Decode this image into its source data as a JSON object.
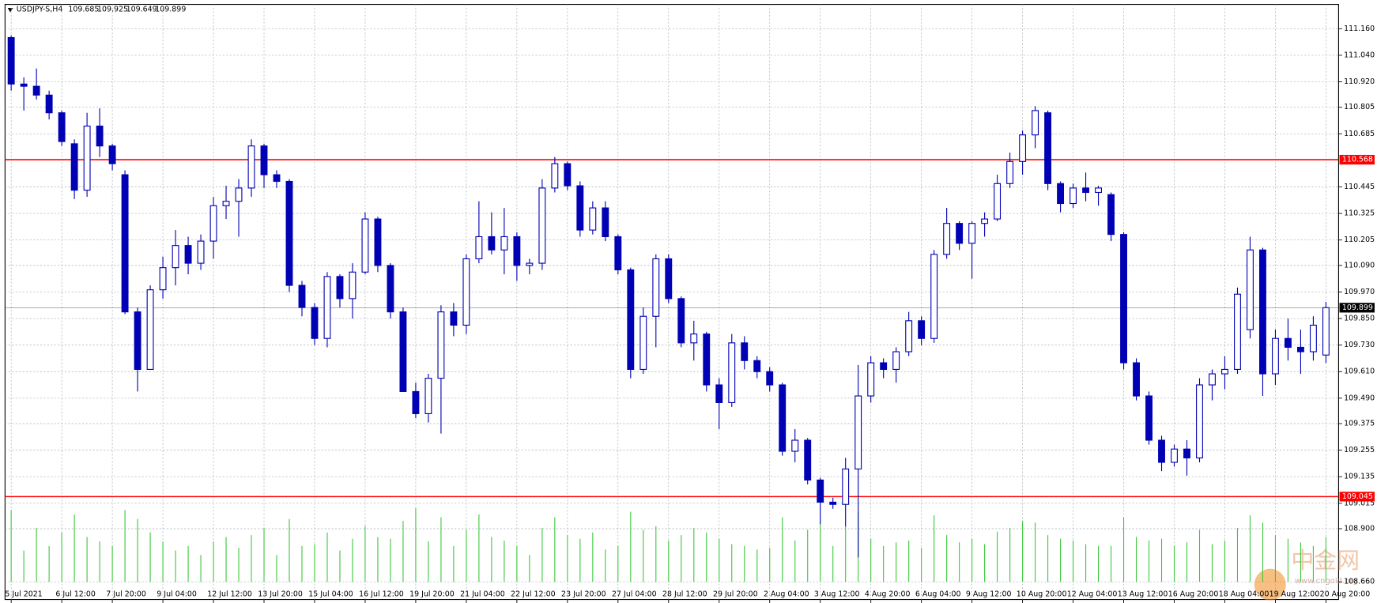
{
  "chart_data": {
    "type": "candlestick",
    "title": "USDJPY-S,H4",
    "color": "#0000b4",
    "volume_color": "#3cc83c",
    "grid": true,
    "watermark": "中金网",
    "watermark_sub": "www.cngold.org",
    "ylim": [
      108.58,
      111.27
    ],
    "yticks": [
      {
        "value": 111.16,
        "label": "111.160"
      },
      {
        "value": 111.04,
        "label": "111.040"
      },
      {
        "value": 110.92,
        "label": "110.920"
      },
      110.805,
      110.685,
      110.445,
      110.325,
      110.205,
      {
        "value": 110.09,
        "label": "110.090"
      },
      {
        "value": 109.97,
        "label": "109.970"
      },
      {
        "value": 109.85,
        "label": "109.850"
      },
      {
        "value": 109.73,
        "label": "109.730"
      },
      {
        "value": 109.61,
        "label": "109.610"
      },
      {
        "value": 109.49,
        "label": "109.490"
      },
      109.375,
      109.255,
      109.135,
      109.015,
      {
        "value": 108.9,
        "label": "108.900"
      },
      {
        "value": 108.66,
        "label": "108.660"
      }
    ],
    "hlines": [
      {
        "value": 110.568,
        "color": "#ff0000"
      },
      {
        "value": 109.045,
        "color": "#ff0000"
      },
      {
        "value": 109.899,
        "color": "#000000"
      }
    ],
    "categories": [
      "5 Jul 2021",
      null,
      null,
      null,
      "6 Jul 12:00",
      null,
      null,
      null,
      "7 Jul 20:00",
      null,
      null,
      null,
      "9 Jul 04:00",
      null,
      null,
      null,
      "12 Jul 12:00",
      null,
      null,
      null,
      "13 Jul 20:00",
      null,
      null,
      null,
      "15 Jul 04:00",
      null,
      null,
      null,
      "16 Jul 12:00",
      null,
      null,
      null,
      "19 Jul 20:00",
      null,
      null,
      null,
      "21 Jul 04:00",
      null,
      null,
      null,
      "22 Jul 12:00",
      null,
      null,
      null,
      "23 Jul 20:00",
      null,
      null,
      null,
      "27 Jul 04:00",
      null,
      null,
      null,
      "28 Jul 12:00",
      null,
      null,
      null,
      "29 Jul 20:00",
      null,
      null,
      null,
      "2 Aug 04:00",
      null,
      null,
      null,
      "3 Aug 12:00",
      null,
      null,
      null,
      "4 Aug 20:00",
      null,
      null,
      null,
      "6 Aug 04:00",
      null,
      null,
      null,
      "9 Aug 12:00",
      null,
      null,
      null,
      "10 Aug 20:00",
      null,
      null,
      null,
      "12 Aug 04:00",
      null,
      null,
      null,
      "13 Aug 12:00",
      null,
      null,
      null,
      "16 Aug 20:00",
      null,
      null,
      null,
      "18 Aug 04:00",
      null,
      null,
      null,
      "19 Aug 12:00",
      null,
      null,
      null,
      "20 Aug 20:00"
    ],
    "open": [
      111.12,
      110.91,
      110.9,
      110.86,
      110.78,
      110.64,
      110.43,
      110.72,
      110.63,
      110.5,
      109.88,
      109.62,
      109.98,
      110.08,
      110.18,
      110.1,
      110.2,
      110.36,
      110.38,
      110.44,
      110.63,
      110.5,
      110.47,
      110.0,
      109.9,
      109.76,
      110.04,
      109.94,
      110.06,
      110.3,
      110.09,
      109.88,
      109.52,
      109.42,
      109.58,
      109.88,
      109.82,
      110.12,
      110.22,
      110.16,
      110.22,
      110.09,
      110.1,
      110.44,
      110.55,
      110.45,
      110.25,
      110.35,
      110.22,
      110.07,
      109.62,
      109.86,
      110.12,
      109.94,
      109.74,
      109.78,
      109.55,
      109.47,
      109.74,
      109.66,
      109.61,
      109.55,
      109.25,
      109.3,
      109.12,
      109.02,
      109.01,
      109.17,
      109.5,
      109.65,
      109.62,
      109.7,
      109.84,
      109.76,
      110.14,
      110.28,
      110.19,
      110.28,
      110.3,
      110.46,
      110.56,
      110.68,
      110.78,
      110.46,
      110.37,
      110.44,
      110.42,
      110.41,
      110.23,
      109.65,
      109.5,
      109.3,
      109.2,
      109.26,
      109.22,
      109.55,
      109.6,
      109.62,
      109.8,
      110.16,
      109.6,
      109.76,
      109.72,
      109.7,
      109.685
    ],
    "high": [
      111.13,
      110.94,
      110.98,
      110.88,
      110.79,
      110.66,
      110.78,
      110.8,
      110.64,
      110.52,
      109.9,
      110.0,
      110.13,
      110.25,
      110.22,
      110.23,
      110.4,
      110.45,
      110.48,
      110.66,
      110.64,
      110.52,
      110.48,
      110.02,
      109.92,
      110.06,
      110.05,
      110.1,
      110.33,
      110.31,
      110.1,
      109.9,
      109.56,
      109.6,
      109.91,
      109.92,
      110.14,
      110.38,
      110.33,
      110.35,
      110.24,
      110.12,
      110.48,
      110.58,
      110.56,
      110.47,
      110.38,
      110.38,
      110.23,
      110.08,
      109.9,
      110.14,
      110.14,
      109.95,
      109.84,
      109.79,
      109.58,
      109.78,
      109.77,
      109.68,
      109.63,
      109.56,
      109.35,
      109.31,
      109.13,
      109.04,
      109.22,
      109.64,
      109.68,
      109.67,
      109.72,
      109.88,
      109.86,
      110.16,
      110.35,
      110.29,
      110.29,
      110.33,
      110.5,
      110.6,
      110.7,
      110.81,
      110.79,
      110.47,
      110.46,
      110.51,
      110.45,
      110.42,
      110.24,
      109.67,
      109.52,
      109.32,
      109.28,
      109.3,
      109.58,
      109.62,
      109.68,
      109.99,
      110.22,
      110.17,
      109.8,
      109.85,
      109.8,
      109.86,
      109.925
    ],
    "low": [
      110.88,
      110.79,
      110.84,
      110.75,
      110.63,
      110.39,
      110.4,
      110.58,
      110.52,
      109.87,
      109.52,
      109.64,
      109.94,
      110.0,
      110.05,
      110.07,
      110.12,
      110.3,
      110.22,
      110.4,
      110.44,
      110.44,
      109.97,
      109.86,
      109.73,
      109.72,
      109.9,
      109.85,
      110.05,
      110.06,
      109.85,
      109.52,
      109.4,
      109.38,
      109.33,
      109.77,
      109.78,
      110.1,
      110.14,
      110.05,
      110.02,
      110.05,
      110.07,
      110.42,
      110.43,
      110.22,
      110.23,
      110.2,
      110.05,
      109.58,
      109.6,
      109.72,
      109.92,
      109.72,
      109.66,
      109.52,
      109.35,
      109.45,
      109.62,
      109.58,
      109.52,
      109.23,
      109.2,
      109.1,
      108.92,
      108.99,
      108.91,
      108.77,
      109.47,
      109.58,
      109.56,
      109.68,
      109.73,
      109.74,
      110.12,
      110.16,
      110.03,
      110.22,
      110.29,
      110.44,
      110.5,
      110.62,
      110.43,
      110.33,
      110.35,
      110.38,
      110.36,
      110.2,
      109.62,
      109.48,
      109.28,
      109.16,
      109.18,
      109.14,
      109.2,
      109.48,
      109.53,
      109.6,
      109.76,
      109.5,
      109.55,
      109.66,
      109.6,
      109.66,
      109.649
    ],
    "close": [
      110.91,
      110.9,
      110.86,
      110.78,
      110.65,
      110.43,
      110.72,
      110.63,
      110.55,
      109.88,
      109.62,
      109.98,
      110.08,
      110.18,
      110.1,
      110.2,
      110.36,
      110.38,
      110.44,
      110.63,
      110.5,
      110.47,
      110.0,
      109.9,
      109.76,
      110.04,
      109.94,
      110.06,
      110.3,
      110.09,
      109.88,
      109.52,
      109.42,
      109.58,
      109.88,
      109.82,
      110.12,
      110.22,
      110.16,
      110.22,
      110.09,
      110.1,
      110.44,
      110.55,
      110.45,
      110.25,
      110.35,
      110.22,
      110.07,
      109.62,
      109.86,
      110.12,
      109.94,
      109.74,
      109.78,
      109.55,
      109.47,
      109.74,
      109.66,
      109.61,
      109.55,
      109.25,
      109.3,
      109.12,
      109.02,
      109.01,
      109.17,
      109.5,
      109.65,
      109.62,
      109.7,
      109.84,
      109.76,
      110.14,
      110.28,
      110.19,
      110.28,
      110.3,
      110.46,
      110.56,
      110.68,
      110.79,
      110.46,
      110.37,
      110.44,
      110.42,
      110.44,
      110.23,
      109.65,
      109.5,
      109.3,
      109.2,
      109.26,
      109.22,
      109.55,
      109.6,
      109.62,
      109.96,
      110.16,
      109.6,
      109.76,
      109.72,
      109.7,
      109.82,
      109.899
    ],
    "volume": [
      80,
      35,
      60,
      40,
      55,
      75,
      50,
      45,
      40,
      80,
      70,
      55,
      45,
      35,
      40,
      30,
      45,
      50,
      38,
      52,
      60,
      30,
      70,
      40,
      42,
      55,
      35,
      48,
      62,
      50,
      48,
      68,
      82,
      45,
      72,
      40,
      58,
      75,
      50,
      46,
      40,
      30,
      60,
      72,
      52,
      48,
      55,
      36,
      40,
      78,
      58,
      62,
      46,
      52,
      60,
      55,
      48,
      42,
      40,
      36,
      38,
      72,
      46,
      58,
      64,
      40,
      62,
      78,
      48,
      40,
      44,
      46,
      38,
      74,
      52,
      44,
      48,
      42,
      56,
      60,
      68,
      66,
      52,
      48,
      46,
      42,
      40,
      40,
      72,
      50,
      46,
      48,
      40,
      44,
      58,
      42,
      46,
      60,
      74,
      66,
      52,
      48,
      44,
      40,
      50
    ]
  }
}
